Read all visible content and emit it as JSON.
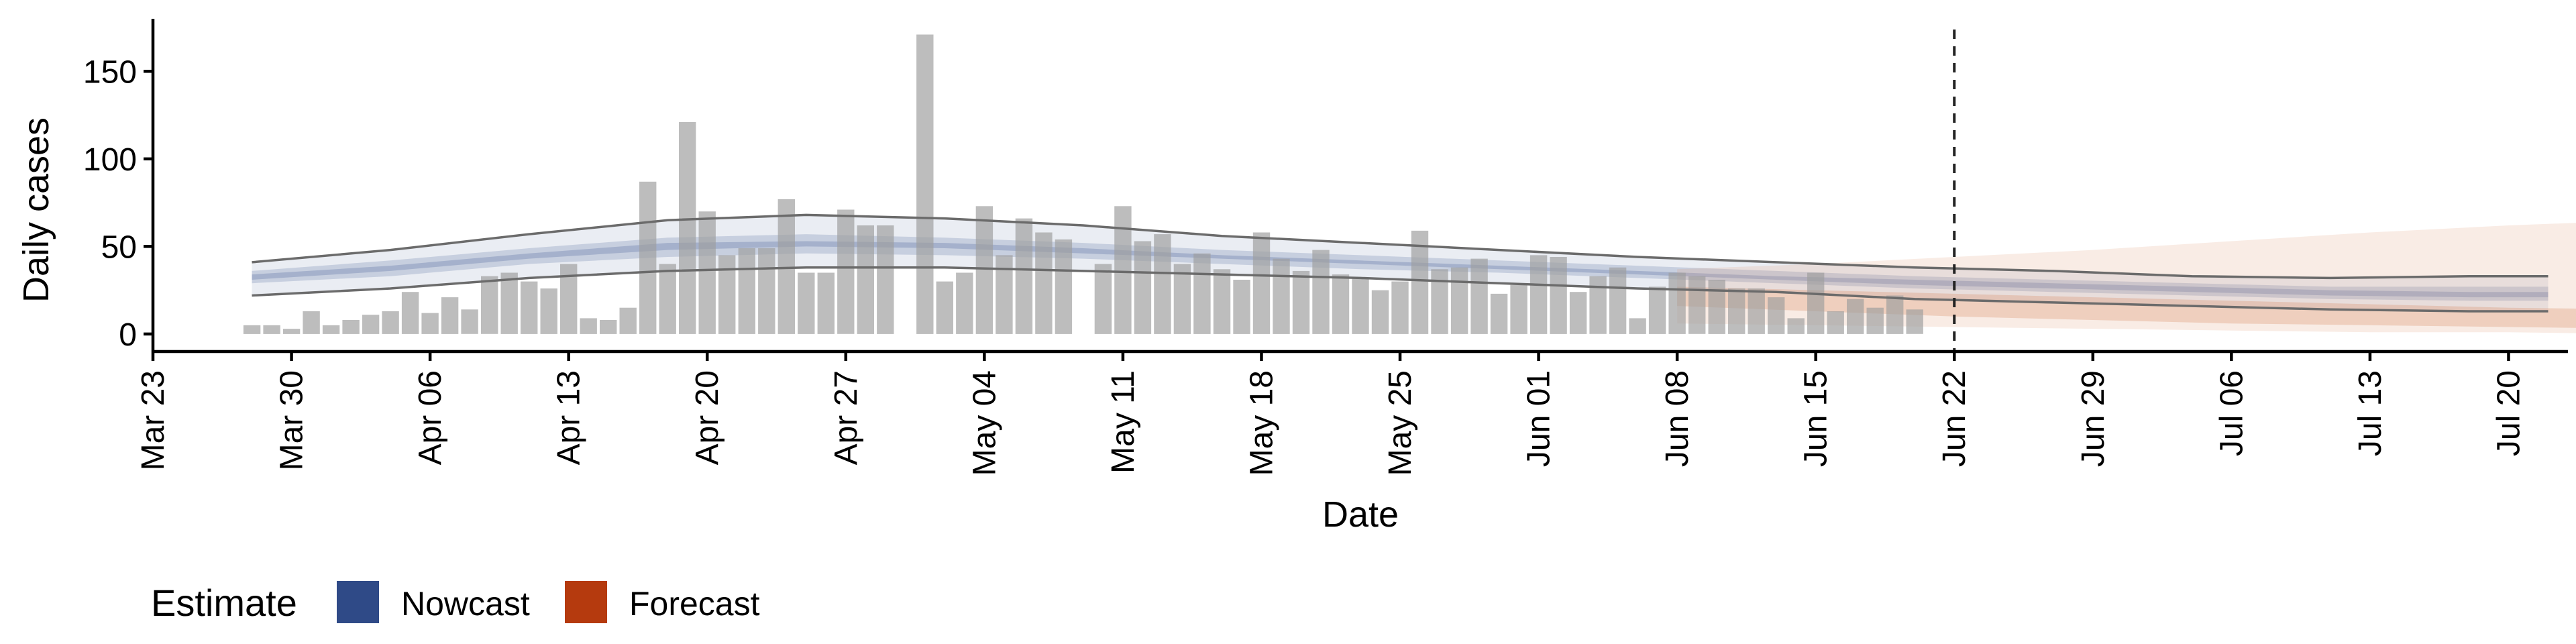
{
  "chart_data": {
    "type": "bar",
    "xlabel": "Date",
    "ylabel": "Daily cases",
    "x_tick_labels": [
      "Mar 23",
      "Mar 30",
      "Apr 06",
      "Apr 13",
      "Apr 20",
      "Apr 27",
      "May 04",
      "May 11",
      "May 18",
      "May 25",
      "Jun 01",
      "Jun 08",
      "Jun 15",
      "Jun 22",
      "Jun 29",
      "Jul 06",
      "Jul 13",
      "Jul 20"
    ],
    "y_ticks": [
      0,
      50,
      100,
      150
    ],
    "ylim": [
      -10,
      180
    ],
    "xlim": [
      "2020-03-23",
      "2020-07-23"
    ],
    "start_date": "2020-03-28",
    "daily_cases": [
      5,
      5,
      3,
      13,
      5,
      8,
      11,
      13,
      24,
      12,
      21,
      14,
      33,
      35,
      30,
      26,
      40,
      9,
      8,
      15,
      87,
      40,
      121,
      70,
      45,
      49,
      49,
      77,
      35,
      35,
      71,
      62,
      62,
      0,
      171,
      30,
      35,
      73,
      45,
      66,
      58,
      54,
      0,
      40,
      73,
      53,
      57,
      40,
      46,
      37,
      31,
      58,
      43,
      36,
      48,
      34,
      32,
      25,
      30,
      59,
      37,
      38,
      43,
      23,
      28,
      45,
      44,
      24,
      33,
      38,
      9,
      27,
      35,
      33,
      31,
      26,
      26,
      21,
      9,
      35,
      13,
      20,
      15,
      22,
      14
    ],
    "observation_cutoff": "2020-06-22",
    "legend": {
      "title": "Estimate",
      "position": "bottom-left",
      "items": [
        {
          "name": "Nowcast",
          "color": "#2F4A87"
        },
        {
          "name": "Forecast",
          "color": "#B53A0E"
        }
      ]
    },
    "nowcast": {
      "start": "2020-03-28",
      "end": "2020-06-07",
      "upper_90": [
        [
          0,
          41
        ],
        [
          7,
          48
        ],
        [
          14,
          57
        ],
        [
          21,
          65
        ],
        [
          28,
          68
        ],
        [
          35,
          66
        ],
        [
          42,
          62
        ],
        [
          49,
          56
        ],
        [
          56,
          52
        ],
        [
          63,
          48
        ],
        [
          70,
          44
        ],
        [
          77,
          41
        ],
        [
          84,
          38
        ],
        [
          91,
          36
        ],
        [
          98,
          33
        ],
        [
          105,
          32
        ],
        [
          112,
          33
        ],
        [
          116,
          33
        ]
      ],
      "lower_90": [
        [
          0,
          22
        ],
        [
          7,
          26
        ],
        [
          14,
          32
        ],
        [
          21,
          36
        ],
        [
          28,
          38
        ],
        [
          35,
          38
        ],
        [
          42,
          36
        ],
        [
          49,
          34
        ],
        [
          56,
          32
        ],
        [
          63,
          29
        ],
        [
          70,
          26
        ],
        [
          77,
          24
        ],
        [
          84,
          20
        ],
        [
          91,
          18
        ],
        [
          98,
          16
        ],
        [
          105,
          14
        ],
        [
          112,
          13
        ],
        [
          116,
          13
        ]
      ],
      "upper_50": [
        [
          0,
          36
        ],
        [
          7,
          42
        ],
        [
          14,
          49
        ],
        [
          21,
          55
        ],
        [
          28,
          57
        ],
        [
          35,
          55
        ],
        [
          42,
          52
        ],
        [
          49,
          48
        ],
        [
          56,
          45
        ],
        [
          63,
          42
        ],
        [
          70,
          39
        ],
        [
          77,
          36
        ],
        [
          84,
          33
        ],
        [
          91,
          31
        ],
        [
          98,
          29
        ],
        [
          105,
          27
        ],
        [
          112,
          27
        ],
        [
          116,
          27
        ]
      ],
      "lower_50": [
        [
          0,
          29
        ],
        [
          7,
          33
        ],
        [
          14,
          40
        ],
        [
          21,
          44
        ],
        [
          28,
          46
        ],
        [
          35,
          45
        ],
        [
          42,
          43
        ],
        [
          49,
          40
        ],
        [
          56,
          37
        ],
        [
          63,
          35
        ],
        [
          70,
          32
        ],
        [
          77,
          29
        ],
        [
          84,
          26
        ],
        [
          91,
          24
        ],
        [
          98,
          22
        ],
        [
          105,
          20
        ],
        [
          112,
          19
        ],
        [
          116,
          19
        ]
      ],
      "upper_20": [
        [
          0,
          34
        ],
        [
          7,
          39
        ],
        [
          14,
          46
        ],
        [
          21,
          52
        ],
        [
          28,
          53
        ],
        [
          35,
          52
        ],
        [
          42,
          49
        ],
        [
          49,
          45
        ],
        [
          56,
          42
        ],
        [
          63,
          39
        ],
        [
          70,
          36
        ],
        [
          77,
          33
        ],
        [
          84,
          31
        ],
        [
          91,
          29
        ],
        [
          98,
          27
        ],
        [
          105,
          25
        ],
        [
          112,
          24
        ],
        [
          116,
          24
        ]
      ],
      "lower_20": [
        [
          0,
          31
        ],
        [
          7,
          36
        ],
        [
          14,
          43
        ],
        [
          21,
          48
        ],
        [
          28,
          50
        ],
        [
          35,
          49
        ],
        [
          42,
          46
        ],
        [
          49,
          43
        ],
        [
          56,
          40
        ],
        [
          63,
          37
        ],
        [
          70,
          34
        ],
        [
          77,
          31
        ],
        [
          84,
          28
        ],
        [
          91,
          26
        ],
        [
          98,
          24
        ],
        [
          105,
          22
        ],
        [
          112,
          21
        ],
        [
          116,
          21
        ]
      ]
    },
    "forecast": {
      "start": "2020-06-08",
      "end": "2020-07-18",
      "upper_90": [
        [
          0,
          37
        ],
        [
          7,
          40
        ],
        [
          14,
          44
        ],
        [
          21,
          48
        ],
        [
          28,
          53
        ],
        [
          35,
          58
        ],
        [
          42,
          62
        ],
        [
          49,
          65
        ],
        [
          56,
          67
        ]
      ],
      "lower_90": [
        [
          0,
          6
        ],
        [
          7,
          5
        ],
        [
          14,
          4
        ],
        [
          21,
          3
        ],
        [
          28,
          2
        ],
        [
          35,
          1
        ],
        [
          42,
          1
        ],
        [
          49,
          0
        ],
        [
          56,
          0
        ]
      ],
      "upper_50": [
        [
          0,
          27
        ],
        [
          7,
          25
        ],
        [
          14,
          23
        ],
        [
          21,
          21
        ],
        [
          28,
          19
        ],
        [
          35,
          17
        ],
        [
          42,
          15
        ],
        [
          49,
          14
        ],
        [
          56,
          13
        ]
      ],
      "lower_50": [
        [
          0,
          16
        ],
        [
          7,
          13
        ],
        [
          14,
          10
        ],
        [
          21,
          8
        ],
        [
          28,
          6
        ],
        [
          35,
          5
        ],
        [
          42,
          4
        ],
        [
          49,
          3
        ],
        [
          56,
          3
        ]
      ]
    }
  }
}
